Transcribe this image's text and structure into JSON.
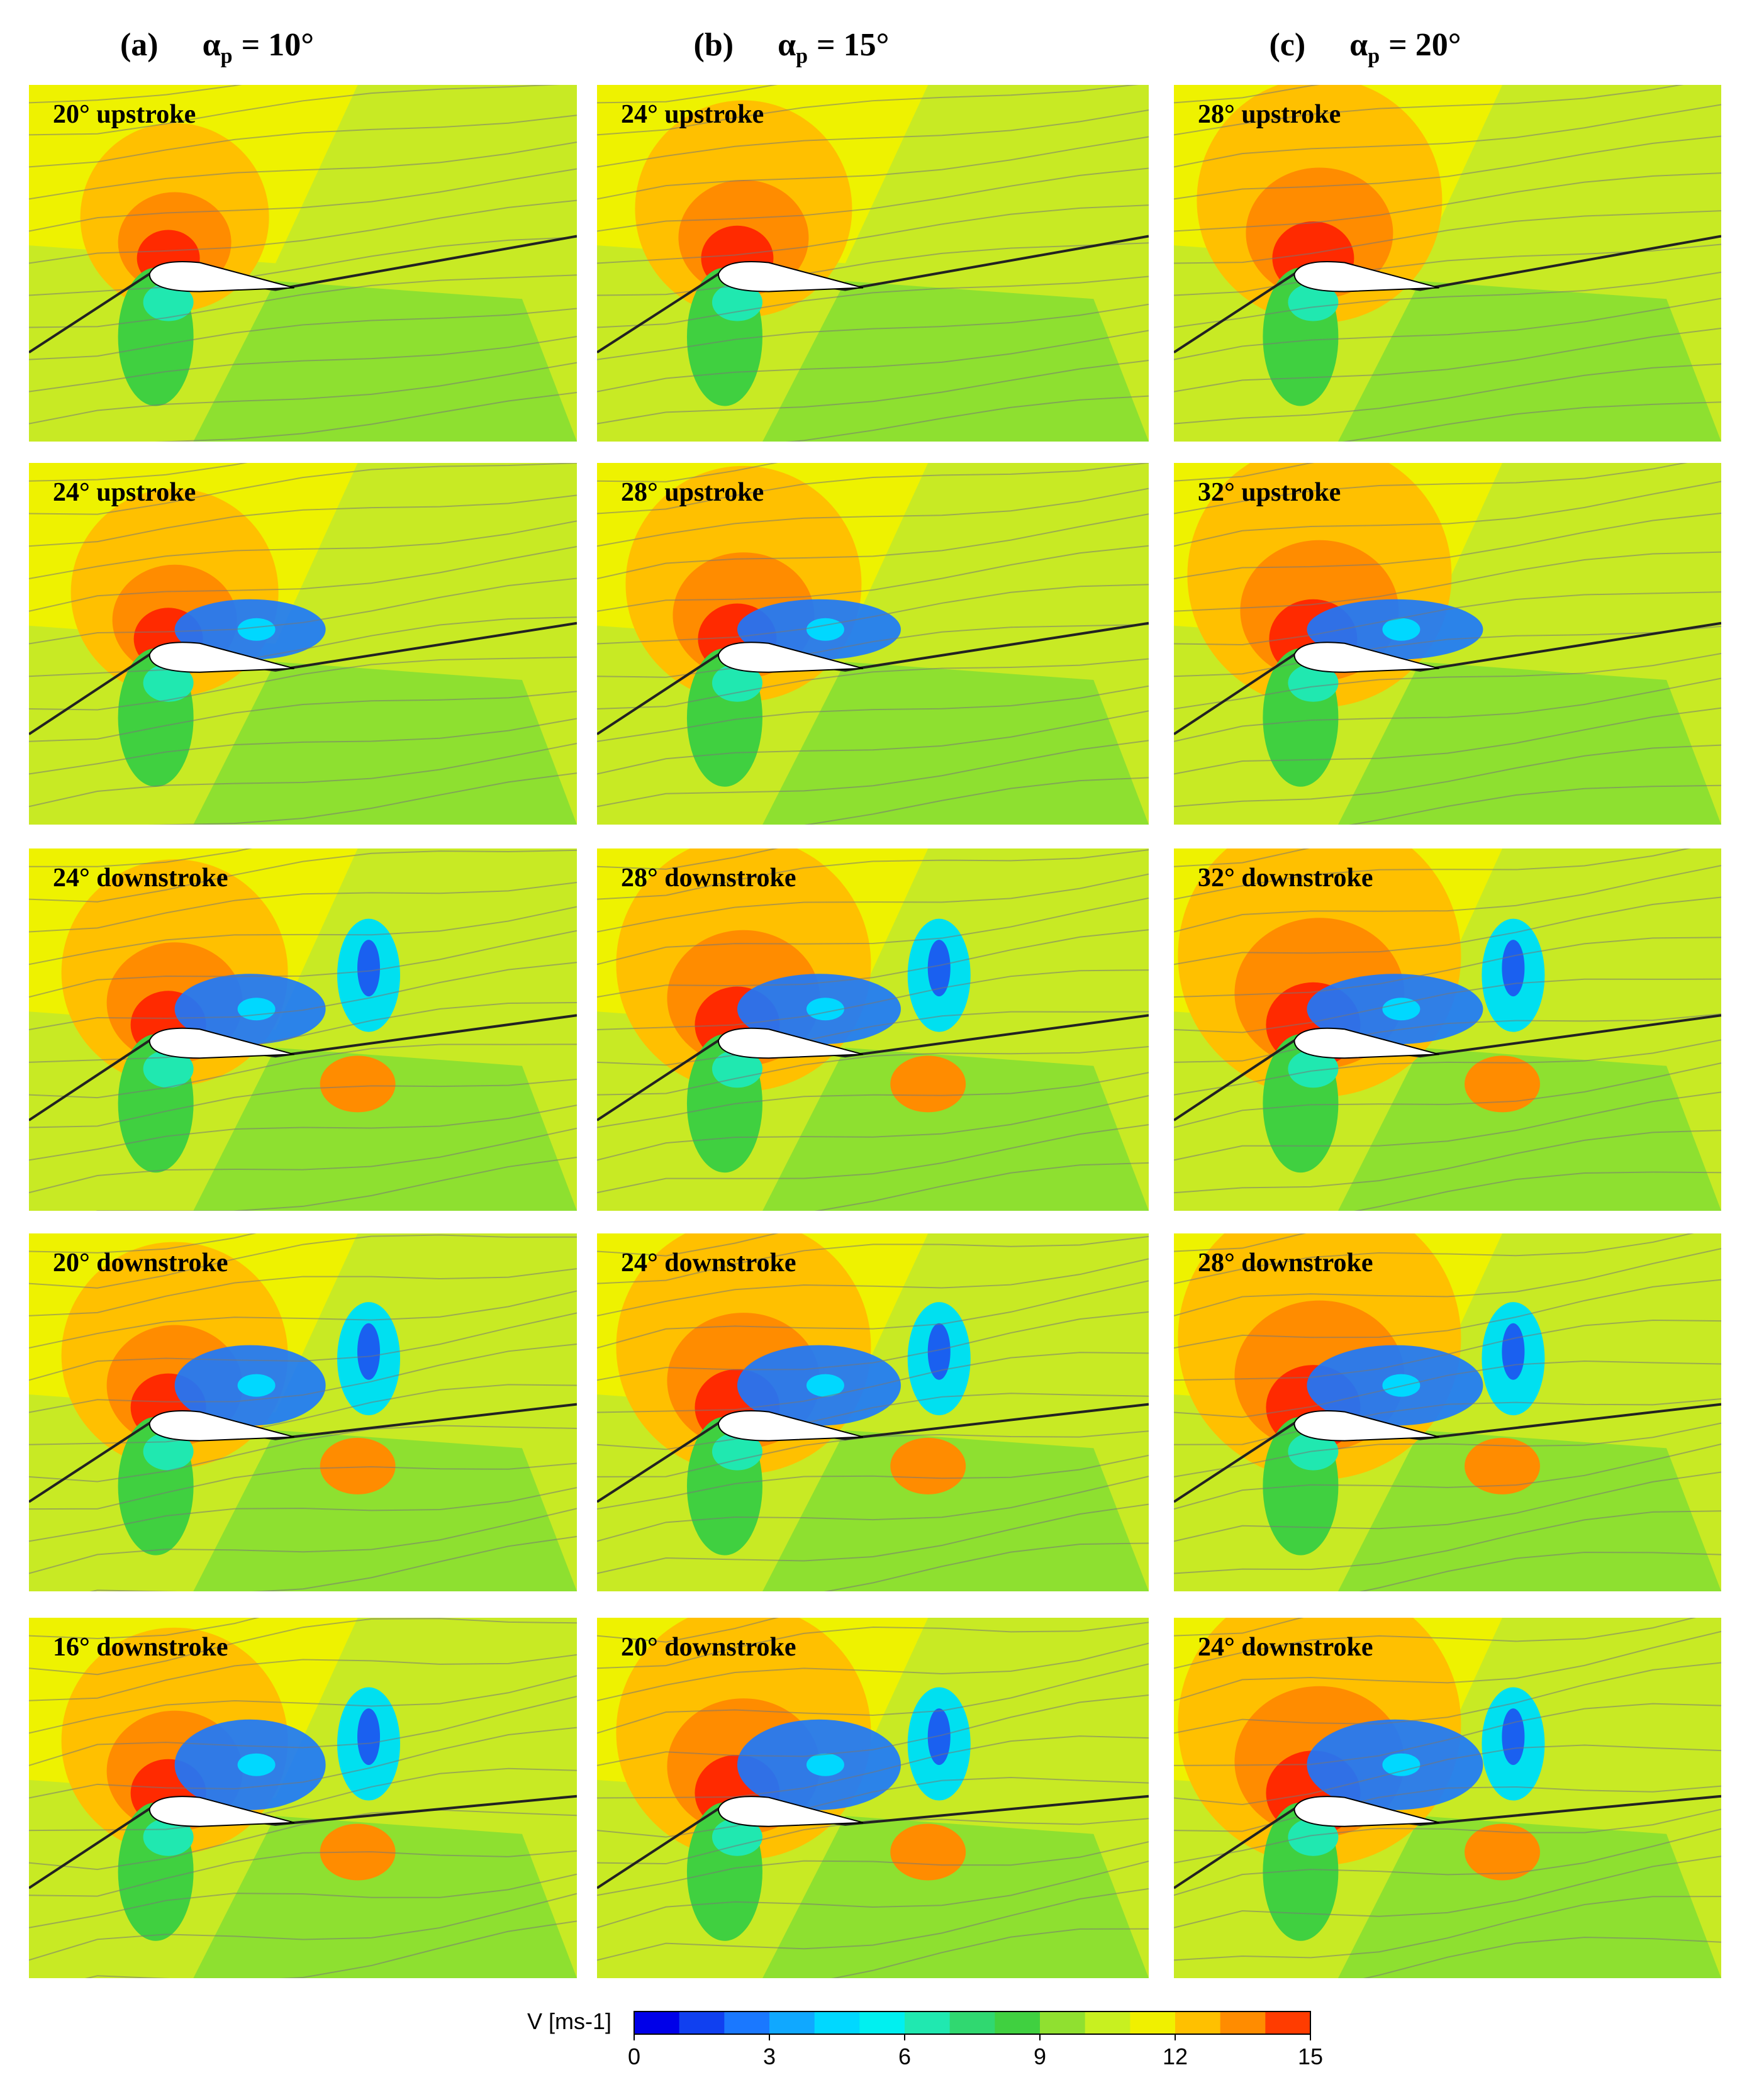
{
  "figure": {
    "columns": [
      {
        "label": "(a)",
        "symbol": "α",
        "sub": "p",
        "eq": "= 10°"
      },
      {
        "label": "(b)",
        "symbol": "α",
        "sub": "p",
        "eq": "= 15°"
      },
      {
        "label": "(c)",
        "symbol": "α",
        "sub": "p",
        "eq": "= 20°"
      }
    ],
    "panels": [
      [
        "20° upstroke",
        "24° upstroke",
        "28° upstroke"
      ],
      [
        "24° upstroke",
        "28° upstroke",
        "32° upstroke"
      ],
      [
        "24° downstroke",
        "28° downstroke",
        "32° downstroke"
      ],
      [
        "20° downstroke",
        "24° downstroke",
        "28° downstroke"
      ],
      [
        "16° downstroke",
        "20° downstroke",
        "24° downstroke"
      ]
    ],
    "colorbar": {
      "label": "V [ms-1]",
      "min": 0,
      "max": 15,
      "ticks": [
        0,
        3,
        6,
        9,
        12,
        15
      ],
      "colors": [
        "#0000e8",
        "#1040f0",
        "#1a78ff",
        "#10a8ff",
        "#00d8ff",
        "#00f0f0",
        "#20e8b0",
        "#30d870",
        "#40d040",
        "#90e030",
        "#c8f020",
        "#f0f000",
        "#ffc000",
        "#ff8c00",
        "#ff3c00"
      ]
    }
  }
}
